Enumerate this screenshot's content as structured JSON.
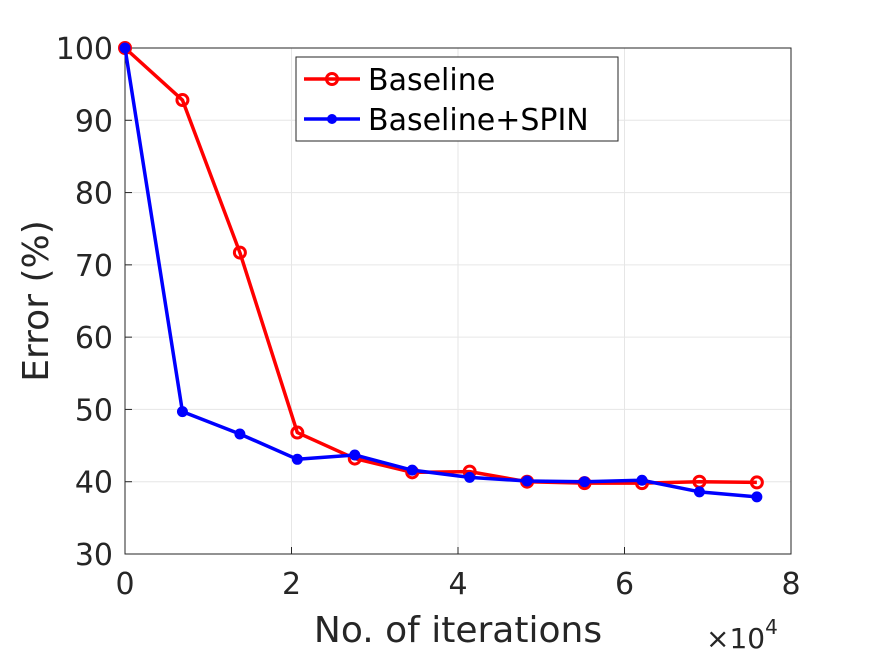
{
  "chart_data": {
    "type": "line",
    "title": "",
    "xlabel": "No. of iterations",
    "ylabel": "Error (%)",
    "x_multiplier_label": "×10",
    "x_multiplier_exponent": "4",
    "xlim": [
      0,
      8
    ],
    "ylim": [
      30,
      100
    ],
    "xticks": [
      0,
      2,
      4,
      6,
      8
    ],
    "yticks": [
      30,
      40,
      50,
      60,
      70,
      80,
      90,
      100
    ],
    "grid": true,
    "legend_position": "top-center",
    "series": [
      {
        "name": "Baseline",
        "color": "#ff0000",
        "marker": "open-circle",
        "x": [
          0,
          0.69,
          1.38,
          2.07,
          2.76,
          3.45,
          4.14,
          4.83,
          5.52,
          6.21,
          6.9,
          7.59
        ],
        "y": [
          100,
          92.8,
          71.7,
          46.8,
          43.2,
          41.3,
          41.4,
          40.0,
          39.8,
          39.8,
          40.0,
          39.9
        ]
      },
      {
        "name": "Baseline+SPIN",
        "color": "#0000ff",
        "marker": "filled-dot",
        "x": [
          0,
          0.69,
          1.38,
          2.07,
          2.76,
          3.45,
          4.14,
          4.83,
          5.52,
          6.21,
          6.9,
          7.59
        ],
        "y": [
          100,
          49.7,
          46.6,
          43.1,
          43.7,
          41.6,
          40.6,
          40.1,
          40.0,
          40.2,
          38.6,
          37.9
        ]
      }
    ]
  }
}
